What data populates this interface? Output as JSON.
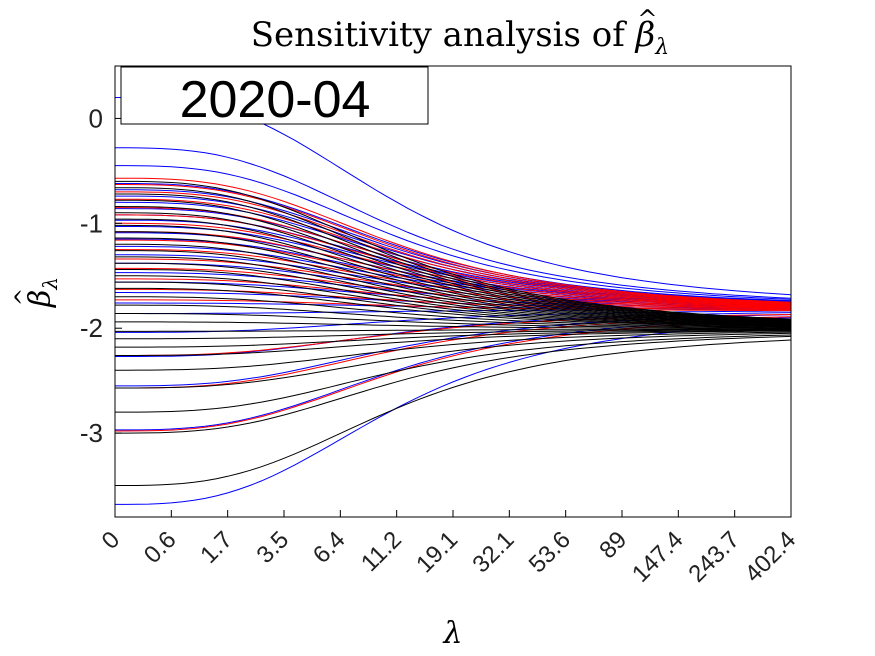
{
  "chart_data": {
    "type": "line",
    "title": "Sensitivity analysis of β̂λ",
    "title_prefix": "Sensitivity analysis of ",
    "title_symbol": "β",
    "title_subscript": "λ",
    "xlabel": "λ",
    "ylabel_symbol": "β",
    "ylabel_subscript": "λ",
    "annotation": "2020-04",
    "x_tick_labels": [
      "0",
      "0.6",
      "1.7",
      "3.5",
      "6.4",
      "11.2",
      "19.1",
      "32.1",
      "53.6",
      "89",
      "147.4",
      "243.7",
      "402.4"
    ],
    "y_ticks": [
      -3,
      -2,
      -1,
      0
    ],
    "ylim": [
      -3.8,
      0.5
    ],
    "grid": false,
    "colors": {
      "blue": "#0000ff",
      "red": "#ff0000",
      "black": "#000000"
    },
    "line_groups": [
      {
        "color": "#0000ff",
        "target": -1.82,
        "starts": [
          0.2,
          -0.28,
          -0.45,
          -0.62,
          -0.68,
          -0.74,
          -0.8,
          -0.86,
          -0.92,
          -0.97,
          -1.03,
          -1.09,
          -1.15,
          -1.22,
          -1.3,
          -1.38,
          -1.47,
          -1.56,
          -1.66,
          -1.76,
          -1.86,
          -2.04,
          -2.27,
          -2.55,
          -2.97,
          -3.68
        ]
      },
      {
        "color": "#ff0000",
        "target": -1.84,
        "starts": [
          -0.57,
          -0.63,
          -0.7,
          -0.77,
          -0.85,
          -0.92,
          -1.0,
          -1.08,
          -1.16,
          -1.25,
          -1.34,
          -1.43,
          -1.53,
          -1.63,
          -1.73,
          -2.26,
          -2.57,
          -2.98
        ]
      },
      {
        "color": "#000000",
        "target": -2.01,
        "starts": [
          -0.6,
          -0.66,
          -0.72,
          -0.78,
          -0.84,
          -0.9,
          -0.96,
          -1.02,
          -1.08,
          -1.14,
          -1.2,
          -1.26,
          -1.32,
          -1.38,
          -1.44,
          -1.5,
          -1.56,
          -1.62,
          -1.7,
          -1.78,
          -1.86,
          -1.94,
          -2.03,
          -2.1,
          -2.18,
          -2.26,
          -2.4,
          -2.57,
          -2.8,
          -3.0,
          -3.5
        ]
      }
    ]
  }
}
